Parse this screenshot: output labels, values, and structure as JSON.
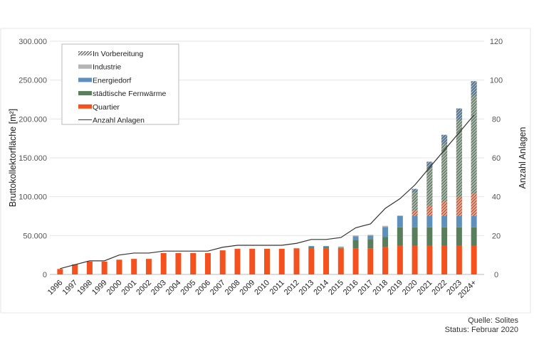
{
  "chart_data": {
    "type": "bar",
    "stacked": true,
    "ylabel": "Bruttokollektorfläche [m²]",
    "y2label": "Anzahl Anlagen",
    "ylim": [
      0,
      300000
    ],
    "y2lim": [
      0,
      120
    ],
    "yticks": [
      "0",
      "50.000",
      "100.000",
      "150.000",
      "200.000",
      "250.000",
      "300.000"
    ],
    "y2ticks": [
      "0",
      "20",
      "40",
      "60",
      "80",
      "100",
      "120"
    ],
    "grid": true,
    "legend_position": "top-left",
    "categories": [
      "1996",
      "1997",
      "1998",
      "1999",
      "2000",
      "2001",
      "2002",
      "2003",
      "2004",
      "2005",
      "2006",
      "2007",
      "2008",
      "2009",
      "2010",
      "2011",
      "2012",
      "2013",
      "2014",
      "2015",
      "2016",
      "2017",
      "2018",
      "2019",
      "2020",
      "2021",
      "2022",
      "2023",
      "2024+"
    ],
    "series": [
      {
        "name": "Quartier",
        "color": "#f4511e",
        "values": [
          7000,
          13000,
          16500,
          16500,
          19000,
          20000,
          20000,
          27500,
          27500,
          27500,
          27500,
          31000,
          33000,
          33000,
          33000,
          33000,
          33500,
          33500,
          33500,
          33500,
          33500,
          33500,
          35000,
          37000,
          37000,
          37000,
          37000,
          37000,
          37000
        ]
      },
      {
        "name": "städtische Fernwärme",
        "color": "#5a7d5c",
        "values": [
          0,
          0,
          0,
          0,
          0,
          0,
          0,
          0,
          0,
          0,
          0,
          0,
          0,
          0,
          0,
          0,
          0,
          1800,
          1800,
          1000,
          11000,
          12000,
          13000,
          23500,
          23500,
          23500,
          23500,
          23500,
          23500
        ]
      },
      {
        "name": "Energiedorf",
        "color": "#5f8fbb",
        "values": [
          0,
          0,
          0,
          0,
          0,
          0,
          0,
          0,
          0,
          0,
          0,
          0,
          0,
          0,
          0,
          0,
          0,
          1200,
          1200,
          0,
          4500,
          4500,
          13000,
          14500,
          14500,
          14500,
          14500,
          14500,
          14500
        ]
      },
      {
        "name": "Industrie",
        "color": "#b4b4b4",
        "values": [
          0,
          0,
          0,
          0,
          0,
          0,
          0,
          0,
          0,
          0,
          0,
          0,
          0,
          0,
          0,
          0,
          500,
          0,
          0,
          1500,
          1200,
          1000,
          1500,
          800,
          0,
          0,
          0,
          0,
          0
        ]
      }
    ],
    "in_preparation": {
      "name": "In Vorbereitung",
      "by_category": [
        {
          "category": "Quartier",
          "color": "#f4511e",
          "values": [
            0,
            0,
            0,
            0,
            0,
            0,
            0,
            0,
            0,
            0,
            0,
            0,
            0,
            0,
            0,
            0,
            0,
            0,
            0,
            0,
            0,
            0,
            0,
            0,
            7000,
            13500,
            19500,
            25000,
            29000
          ]
        },
        {
          "category": "städtische Fernwärme",
          "color": "#5a7d5c",
          "values": [
            0,
            0,
            0,
            0,
            0,
            0,
            0,
            0,
            0,
            0,
            0,
            0,
            0,
            0,
            0,
            0,
            0,
            0,
            0,
            0,
            0,
            0,
            0,
            0,
            24000,
            48500,
            73500,
            99000,
            126000
          ]
        },
        {
          "category": "Energiedorf",
          "color": "#2f5f8a",
          "values": [
            0,
            0,
            0,
            0,
            0,
            0,
            0,
            0,
            0,
            0,
            0,
            0,
            0,
            0,
            0,
            0,
            0,
            0,
            0,
            0,
            0,
            0,
            0,
            0,
            4000,
            8000,
            11500,
            14500,
            18500
          ]
        }
      ]
    },
    "line": {
      "name": "Anzahl Anlagen",
      "color": "#333333",
      "axis": "right",
      "values": [
        3,
        5,
        7,
        7,
        10,
        11,
        11,
        12,
        12,
        12,
        12,
        14,
        15,
        15,
        15,
        15,
        16,
        18,
        18,
        19,
        24,
        26,
        34,
        39,
        46,
        55,
        64,
        73,
        82
      ]
    },
    "legend": [
      "In Vorbereitung",
      "Industrie",
      "Energiedorf",
      "städtische Fernwärme",
      "Quartier",
      "Anzahl Anlagen"
    ],
    "annotations": [
      "Quelle: Solites",
      "Status: Februar 2020"
    ]
  }
}
